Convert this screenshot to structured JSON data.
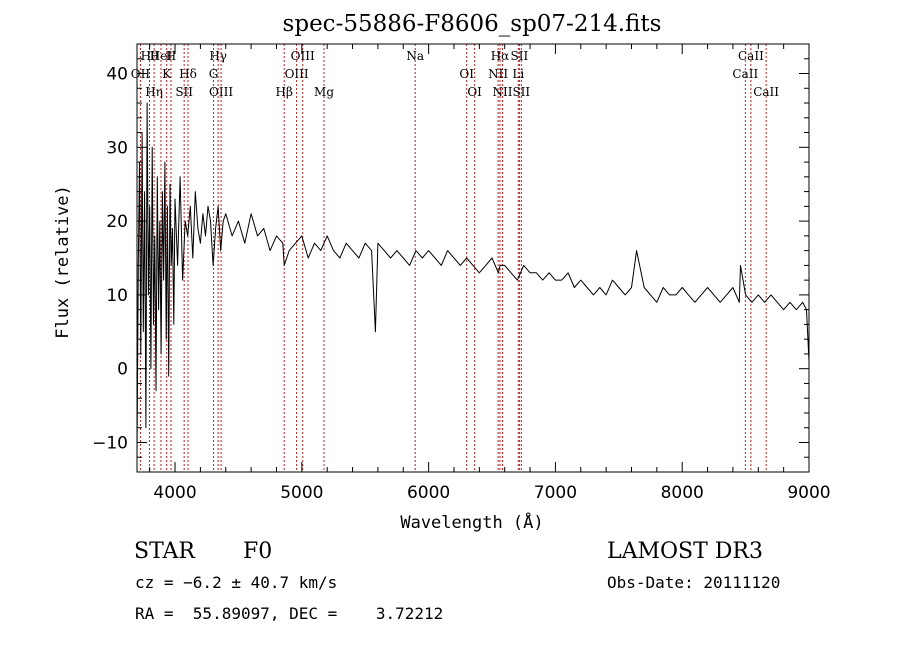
{
  "chart_data": {
    "type": "line",
    "title": "spec-55886-F8606_sp07-214.fits",
    "xlabel": "Wavelength (Å)",
    "ylabel": "Flux (relative)",
    "xlim": [
      3700,
      9000
    ],
    "ylim": [
      -14,
      44
    ],
    "xticks": [
      4000,
      5000,
      6000,
      7000,
      8000,
      9000
    ],
    "yticks": [
      -10,
      0,
      10,
      20,
      30,
      40
    ],
    "series": [
      {
        "name": "spectrum",
        "x": [
          3700,
          3710,
          3720,
          3730,
          3740,
          3750,
          3760,
          3770,
          3780,
          3790,
          3800,
          3810,
          3820,
          3830,
          3840,
          3850,
          3860,
          3870,
          3880,
          3890,
          3900,
          3910,
          3920,
          3930,
          3940,
          3950,
          3960,
          3970,
          3980,
          3990,
          4000,
          4020,
          4040,
          4060,
          4080,
          4100,
          4120,
          4140,
          4160,
          4180,
          4200,
          4220,
          4240,
          4260,
          4280,
          4300,
          4320,
          4340,
          4360,
          4380,
          4400,
          4450,
          4500,
          4550,
          4600,
          4650,
          4700,
          4750,
          4800,
          4850,
          4861,
          4900,
          4950,
          5000,
          5050,
          5100,
          5150,
          5200,
          5250,
          5300,
          5350,
          5400,
          5450,
          5500,
          5550,
          5580,
          5600,
          5650,
          5700,
          5750,
          5800,
          5850,
          5900,
          5950,
          6000,
          6050,
          6100,
          6150,
          6200,
          6250,
          6300,
          6350,
          6400,
          6450,
          6500,
          6550,
          6563,
          6600,
          6650,
          6700,
          6750,
          6800,
          6850,
          6900,
          6950,
          7000,
          7050,
          7100,
          7150,
          7200,
          7250,
          7300,
          7350,
          7400,
          7450,
          7500,
          7550,
          7600,
          7640,
          7700,
          7750,
          7800,
          7850,
          7900,
          7950,
          8000,
          8050,
          8100,
          8150,
          8200,
          8250,
          8300,
          8350,
          8400,
          8450,
          8460,
          8500,
          8550,
          8600,
          8650,
          8700,
          8750,
          8800,
          8850,
          8900,
          8950,
          8980,
          9000
        ],
        "y": [
          -12,
          14,
          28,
          2,
          32,
          5,
          24,
          -8,
          36,
          10,
          22,
          0,
          30,
          6,
          18,
          -3,
          26,
          8,
          20,
          2,
          24,
          12,
          28,
          4,
          22,
          -1,
          25,
          14,
          19,
          6,
          23,
          14,
          26,
          12,
          20,
          18,
          22,
          15,
          24,
          19,
          17,
          21,
          18,
          22,
          20,
          14,
          19,
          22,
          16,
          20,
          21,
          18,
          20,
          17,
          21,
          18,
          19,
          16,
          18,
          17,
          14,
          16,
          17,
          18,
          15,
          17,
          16,
          18,
          16,
          15,
          17,
          16,
          15,
          17,
          16,
          5,
          17,
          16,
          15,
          16,
          15,
          14,
          16,
          15,
          16,
          15,
          14,
          16,
          15,
          14,
          15,
          14,
          13,
          14,
          15,
          13,
          14,
          14,
          13,
          12,
          14,
          13,
          13,
          12,
          13,
          12,
          12,
          13,
          11,
          12,
          11,
          10,
          11,
          10,
          12,
          11,
          10,
          11,
          16,
          11,
          10,
          9,
          11,
          10,
          10,
          11,
          10,
          9,
          10,
          11,
          10,
          9,
          10,
          11,
          9,
          14,
          10,
          9,
          10,
          9,
          10,
          9,
          8,
          9,
          8,
          9,
          8,
          1
        ]
      }
    ],
    "emission_lines": [
      {
        "name": "Hθ",
        "wavelength": 3798
      },
      {
        "name": "OII",
        "wavelength": 3727
      },
      {
        "name": "Hη",
        "wavelength": 3835
      },
      {
        "name": "HeI",
        "wavelength": 3889
      },
      {
        "name": "K",
        "wavelength": 3934
      },
      {
        "name": "SII",
        "wavelength": 4072
      },
      {
        "name": "H",
        "wavelength": 3968
      },
      {
        "name": "Hδ",
        "wavelength": 4102
      },
      {
        "name": "OIII",
        "wavelength": 4363
      },
      {
        "name": "Hγ",
        "wavelength": 4340
      },
      {
        "name": "G",
        "wavelength": 4304
      },
      {
        "name": "Hβ",
        "wavelength": 4861
      },
      {
        "name": "OIII",
        "wavelength": 5007
      },
      {
        "name": "OIII",
        "wavelength": 4959
      },
      {
        "name": "Mg",
        "wavelength": 5175
      },
      {
        "name": "Na",
        "wavelength": 5894
      },
      {
        "name": "OI",
        "wavelength": 6300
      },
      {
        "name": "OI",
        "wavelength": 6363
      },
      {
        "name": "Hα",
        "wavelength": 6563
      },
      {
        "name": "NII",
        "wavelength": 6548
      },
      {
        "name": "NII",
        "wavelength": 6583
      },
      {
        "name": "SII",
        "wavelength": 6716
      },
      {
        "name": "Li",
        "wavelength": 6707
      },
      {
        "name": "SII",
        "wavelength": 6731
      },
      {
        "name": "CaII",
        "wavelength": 8542
      },
      {
        "name": "CaII",
        "wavelength": 8498
      },
      {
        "name": "CaII",
        "wavelength": 8662
      }
    ]
  },
  "info": {
    "object_class": "STAR",
    "subclass": "F0",
    "survey": "LAMOST DR3",
    "cz": "cz = −6.2 ± 40.7 km/s",
    "obs_date": "Obs-Date: 20111120",
    "coords": "RA =  55.89097, DEC =    3.72212"
  }
}
